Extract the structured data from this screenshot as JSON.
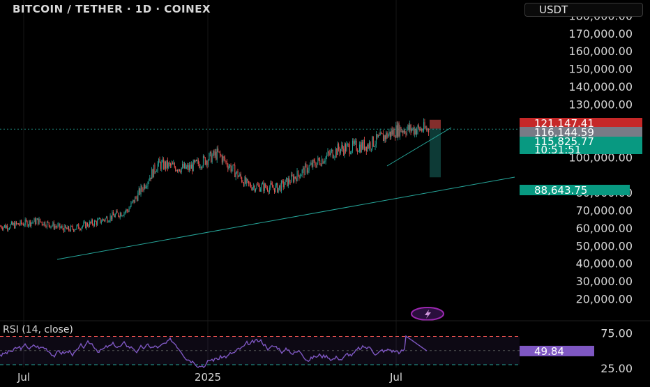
{
  "header": {
    "title": "BITCOIN / TETHER · 1D · COINEX",
    "currency": "USDT"
  },
  "colors": {
    "background": "#000000",
    "up": "#26a69a",
    "down": "#ef5350",
    "rsi_line": "#7e57c2",
    "trendline": "#26a69a",
    "stop_box": "#ef5350",
    "target_box": "#26a69a"
  },
  "chart_data": [
    {
      "type": "candlestick",
      "title": "BITCOIN / TETHER · 1D · COINEX",
      "y_axis_ticks": [
        "180,000.00",
        "170,000.00",
        "160,000.00",
        "150,000.00",
        "140,000.00",
        "130,000.00",
        "100,000.00",
        "80,000.00",
        "70,000.00",
        "60,000.00",
        "50,000.00",
        "40,000.00",
        "30,000.00",
        "20,000.00"
      ],
      "x_axis_ticks": [
        "Jul",
        "2025",
        "Jul"
      ],
      "price_labels": [
        {
          "name": "stop",
          "value": "121,147.41",
          "color": "#c62828"
        },
        {
          "name": "entry",
          "value": "116,144.59",
          "color": "#787b86"
        },
        {
          "name": "last",
          "value": "115,825.77",
          "color": "#089981"
        },
        {
          "name": "countdown",
          "value": "10:51:51",
          "color": "#089981"
        },
        {
          "name": "target",
          "value": "88,643.75",
          "color": "#089981"
        }
      ],
      "approx_series_monthly_close": [
        {
          "x": "2024-06",
          "y": 61000
        },
        {
          "x": "2024-07",
          "y": 64000
        },
        {
          "x": "2024-08",
          "y": 59000
        },
        {
          "x": "2024-09",
          "y": 63500
        },
        {
          "x": "2024-10",
          "y": 70000
        },
        {
          "x": "2024-11",
          "y": 96000
        },
        {
          "x": "2024-12",
          "y": 93500
        },
        {
          "x": "2025-01",
          "y": 102000
        },
        {
          "x": "2025-02",
          "y": 84000
        },
        {
          "x": "2025-03",
          "y": 82500
        },
        {
          "x": "2025-04",
          "y": 94000
        },
        {
          "x": "2025-05",
          "y": 104500
        },
        {
          "x": "2025-06",
          "y": 107000
        },
        {
          "x": "2025-07",
          "y": 115800
        }
      ],
      "annotations": [
        "ascending support trendline",
        "short position tool: entry 116,144.59, stop 121,147.41, target 88,643.75"
      ]
    },
    {
      "type": "line",
      "title": "RSI (14, close)",
      "y_axis_ticks": [
        "75.00",
        "25.00"
      ],
      "current_value": "49.84",
      "overbought": 70,
      "oversold": 30
    }
  ]
}
